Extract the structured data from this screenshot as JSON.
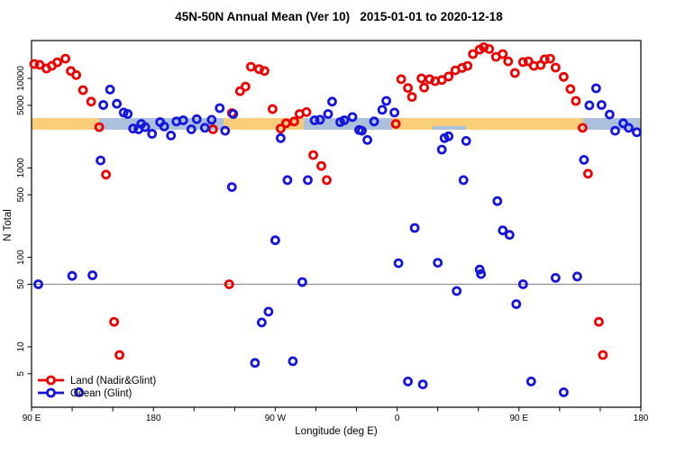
{
  "chart_data": {
    "type": "scatter",
    "title": "45N-50N Annual Mean (Ver 10)   2015-01-01 to 2020-12-18",
    "xlabel": "Longitude (deg E)",
    "ylabel": "N Total",
    "x_axis": {
      "range_deg": [
        90,
        540
      ],
      "minor_tick_step_deg": 30,
      "major_ticks": [
        {
          "deg": 90,
          "label": "90 E"
        },
        {
          "deg": 180,
          "label": "180"
        },
        {
          "deg": 270,
          "label": "90 W"
        },
        {
          "deg": 360,
          "label": "0"
        },
        {
          "deg": 450,
          "label": "90 E"
        },
        {
          "deg": 540,
          "label": "180"
        }
      ]
    },
    "y_axis": {
      "scale": "log",
      "range": [
        2.1,
        26500
      ],
      "ticks": [
        {
          "value": 5,
          "label": "5"
        },
        {
          "value": 10,
          "label": "10"
        },
        {
          "value": 50,
          "label": "50"
        },
        {
          "value": 100,
          "label": "100"
        },
        {
          "value": 500,
          "label": "500"
        },
        {
          "value": 1000,
          "label": "1000"
        },
        {
          "value": 5000,
          "label": "5000"
        },
        {
          "value": 10000,
          "label": "10000"
        }
      ]
    },
    "reference_line": {
      "value": 50,
      "color": "#909090"
    },
    "highlight_bands": {
      "yellow_band": {
        "color": "#FACD78",
        "value_range": [
          2670,
          3600
        ],
        "deg_range": [
          90,
          540
        ]
      },
      "blue_band_color": "#AAC0DD",
      "blue_band_segments": [
        {
          "deg_range": [
            139.9,
            231.8
          ]
        },
        {
          "deg_range": [
            291.0,
            356.2
          ]
        },
        {
          "deg_range": [
            386.3,
            410.9
          ],
          "thin": true
        },
        {
          "deg_range": [
            497.3,
            539.3
          ]
        }
      ]
    },
    "series": [
      {
        "name": "Land (Nadir&Glint)",
        "color": "#EE0000",
        "points": [
          [
            92,
            14500
          ],
          [
            96,
            14200
          ],
          [
            101,
            12900
          ],
          [
            105,
            13800
          ],
          [
            109,
            15100
          ],
          [
            115,
            16600
          ],
          [
            119,
            12100
          ],
          [
            123,
            10900
          ],
          [
            128,
            7400
          ],
          [
            134,
            5500
          ],
          [
            140,
            2850
          ],
          [
            145,
            840
          ],
          [
            151,
            19
          ],
          [
            155,
            8.1
          ],
          [
            224,
            2700
          ],
          [
            236,
            50
          ],
          [
            238,
            4100
          ],
          [
            244,
            7200
          ],
          [
            248,
            8100
          ],
          [
            252,
            13500
          ],
          [
            258,
            12700
          ],
          [
            262,
            12100
          ],
          [
            268,
            4550
          ],
          [
            274,
            2750
          ],
          [
            278,
            3150
          ],
          [
            284,
            3300
          ],
          [
            288,
            4000
          ],
          [
            293,
            4200
          ],
          [
            298,
            1390
          ],
          [
            304,
            1050
          ],
          [
            308,
            730
          ],
          [
            359,
            3100
          ],
          [
            363,
            9800
          ],
          [
            368,
            7800
          ],
          [
            371,
            6200
          ],
          [
            378,
            10000
          ],
          [
            380,
            7900
          ],
          [
            384,
            9800
          ],
          [
            388,
            9300
          ],
          [
            393,
            9600
          ],
          [
            398,
            10500
          ],
          [
            403,
            12300
          ],
          [
            408,
            13100
          ],
          [
            412,
            13800
          ],
          [
            416,
            18700
          ],
          [
            421,
            21000
          ],
          [
            424,
            22300
          ],
          [
            428,
            21300
          ],
          [
            433,
            17400
          ],
          [
            438,
            18700
          ],
          [
            442,
            15500
          ],
          [
            447,
            11500
          ],
          [
            453,
            15200
          ],
          [
            457,
            15500
          ],
          [
            461,
            13800
          ],
          [
            466,
            14100
          ],
          [
            469,
            16300
          ],
          [
            473,
            16600
          ],
          [
            477,
            13200
          ],
          [
            483,
            10400
          ],
          [
            488,
            7600
          ],
          [
            492,
            5600
          ],
          [
            497,
            2800
          ],
          [
            501,
            860
          ],
          [
            509,
            19
          ],
          [
            512,
            8.1
          ]
        ]
      },
      {
        "name": "Ocean (Glint)",
        "color": "#1515DD",
        "points": [
          [
            95,
            50
          ],
          [
            120,
            62
          ],
          [
            125,
            3.1
          ],
          [
            135,
            63
          ],
          [
            141,
            1210
          ],
          [
            143,
            5050
          ],
          [
            148,
            7500
          ],
          [
            153,
            5200
          ],
          [
            158,
            4150
          ],
          [
            161,
            4000
          ],
          [
            165,
            2750
          ],
          [
            169,
            2700
          ],
          [
            171,
            3100
          ],
          [
            174,
            2850
          ],
          [
            179,
            2400
          ],
          [
            185,
            3250
          ],
          [
            188,
            2900
          ],
          [
            193,
            2300
          ],
          [
            197,
            3300
          ],
          [
            202,
            3400
          ],
          [
            208,
            2700
          ],
          [
            212,
            3500
          ],
          [
            218,
            2800
          ],
          [
            223,
            3450
          ],
          [
            229,
            4650
          ],
          [
            233,
            2600
          ],
          [
            238,
            610
          ],
          [
            239,
            4000
          ],
          [
            255,
            6.6
          ],
          [
            260,
            18.7
          ],
          [
            265,
            24.7
          ],
          [
            270,
            155
          ],
          [
            274,
            2150
          ],
          [
            279,
            730
          ],
          [
            283,
            6.9
          ],
          [
            290,
            53
          ],
          [
            294,
            730
          ],
          [
            299,
            3400
          ],
          [
            303,
            3450
          ],
          [
            309,
            4000
          ],
          [
            312,
            5500
          ],
          [
            318,
            3250
          ],
          [
            321,
            3400
          ],
          [
            327,
            3700
          ],
          [
            332,
            2650
          ],
          [
            334,
            2600
          ],
          [
            338,
            2050
          ],
          [
            343,
            3300
          ],
          [
            349,
            4450
          ],
          [
            352,
            5600
          ],
          [
            358,
            4150
          ],
          [
            361,
            86
          ],
          [
            368,
            4.1
          ],
          [
            373,
            213
          ],
          [
            379,
            3.8
          ],
          [
            390,
            87
          ],
          [
            393,
            1600
          ],
          [
            395,
            2150
          ],
          [
            398,
            2250
          ],
          [
            404,
            42
          ],
          [
            409,
            730
          ],
          [
            411,
            2000
          ],
          [
            421,
            73
          ],
          [
            422,
            65
          ],
          [
            434,
            425
          ],
          [
            438,
            200
          ],
          [
            443,
            178
          ],
          [
            448,
            30
          ],
          [
            453,
            50
          ],
          [
            459,
            4.1
          ],
          [
            477,
            59
          ],
          [
            483,
            3.1
          ],
          [
            493,
            61
          ],
          [
            498,
            1230
          ],
          [
            502,
            5000
          ],
          [
            507,
            7750
          ],
          [
            511,
            5050
          ],
          [
            517,
            3950
          ],
          [
            521,
            2600
          ],
          [
            527,
            3150
          ],
          [
            531,
            2800
          ],
          [
            537,
            2500
          ]
        ]
      }
    ],
    "legend": {
      "position": "bottom-left",
      "entries": [
        "Land (Nadir&Glint)",
        "Ocean (Glint)"
      ]
    }
  }
}
